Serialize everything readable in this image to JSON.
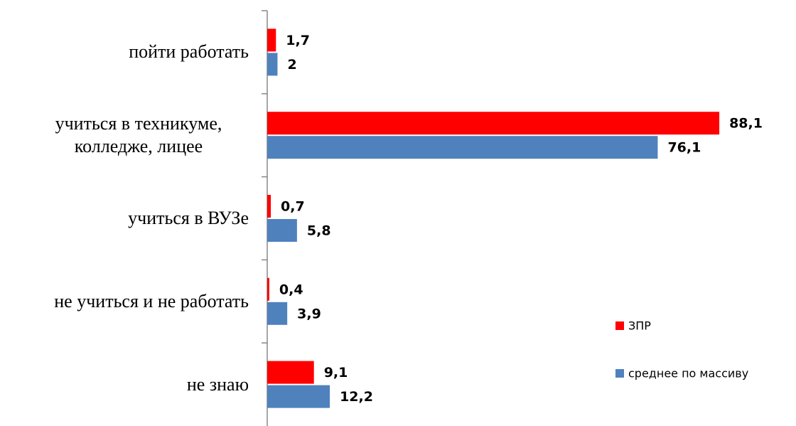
{
  "chart_data": {
    "type": "bar",
    "orientation": "horizontal",
    "categories": [
      "пойти работать",
      "учиться в техникуме, колледже, лицее",
      "учиться в ВУЗе",
      "не учиться и не работать",
      "не знаю"
    ],
    "series": [
      {
        "name": "ЗПР",
        "color": "#ff0000",
        "values": [
          1.7,
          88.1,
          0.7,
          0.4,
          9.1
        ],
        "value_labels": [
          "1,7",
          "88,1",
          "0,7",
          "0,4",
          "9,1"
        ]
      },
      {
        "name": "среднее по массиву",
        "color": "#4f81bd",
        "values": [
          2,
          76.1,
          5.8,
          3.9,
          12.2
        ],
        "value_labels": [
          "2",
          "76,1",
          "5,8",
          "3,9",
          "12,2"
        ]
      }
    ],
    "xlim": [
      0,
      100
    ],
    "legend": "right"
  }
}
